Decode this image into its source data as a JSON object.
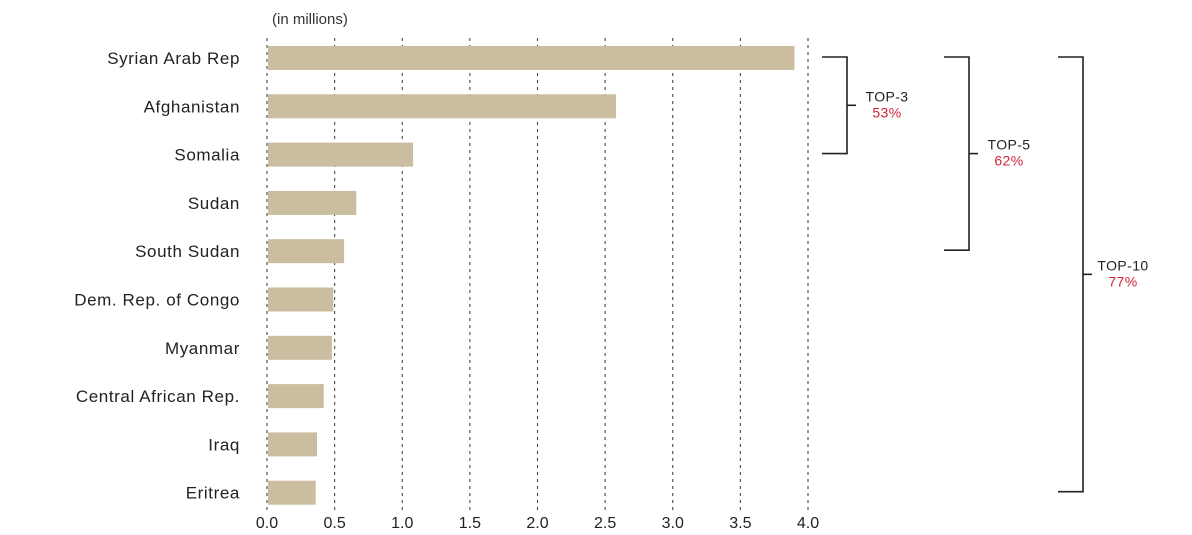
{
  "chart_data": {
    "type": "bar",
    "orientation": "horizontal",
    "unit_label": "(in millions)",
    "categories": [
      "Syrian Arab Rep",
      "Afghanistan",
      "Somalia",
      "Sudan",
      "South Sudan",
      "Dem. Rep. of Congo",
      "Myanmar",
      "Central African Rep.",
      "Iraq",
      "Eritrea"
    ],
    "values": [
      3.9,
      2.58,
      1.08,
      0.66,
      0.57,
      0.49,
      0.48,
      0.42,
      0.37,
      0.36
    ],
    "xlim": [
      0,
      4.0
    ],
    "xticks": [
      "0.0",
      "0.5",
      "1.0",
      "1.5",
      "2.0",
      "2.5",
      "3.0",
      "3.5",
      "4.0"
    ],
    "grid": "vertical-dotted",
    "bar_color": "#cbbd9f",
    "groups": [
      {
        "label": "TOP-3",
        "percent": "53%",
        "first": 0,
        "last": 2
      },
      {
        "label": "TOP-5",
        "percent": "62%",
        "first": 0,
        "last": 4
      },
      {
        "label": "TOP-10",
        "percent": "77%",
        "first": 0,
        "last": 9
      }
    ],
    "percent_color": "#d0243a"
  }
}
